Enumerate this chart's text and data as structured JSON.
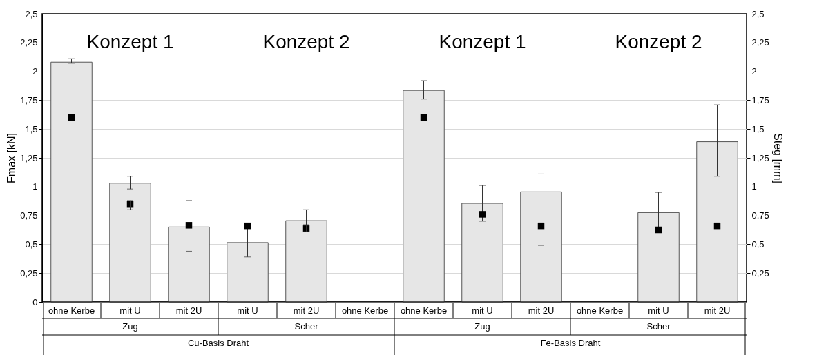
{
  "chart_data": {
    "type": "bar",
    "ylabel": "Fmax [kN]",
    "y2label": "Steg [mm]",
    "categories": [
      "ohne Kerbe",
      "mit U",
      "mit 2U",
      "mit U",
      "mit 2U",
      "ohne Kerbe",
      "ohne Kerbe",
      "mit U",
      "mit 2U",
      "ohne Kerbe",
      "mit U",
      "mit 2U"
    ],
    "series": [
      {
        "color": "#e6e6e6",
        "values": [
          2.08,
          1.03,
          0.65,
          0.515,
          0.705,
          null,
          1.835,
          0.855,
          0.955,
          null,
          0.775,
          1.39
        ],
        "errors": [
          [
            2.07,
            2.11
          ],
          [
            0.98,
            1.09
          ],
          [
            0.44,
            0.88
          ],
          [
            0.39,
            0.64
          ],
          [
            0.62,
            0.8
          ],
          null,
          [
            1.76,
            1.92
          ],
          [
            0.7,
            1.01
          ],
          [
            0.49,
            1.11
          ],
          null,
          [
            0.61,
            0.95
          ],
          [
            1.09,
            1.71
          ]
        ]
      },
      {
        "type": "scatter",
        "axis": "y2",
        "color": "#000000",
        "values": [
          1.6,
          0.845,
          0.665,
          0.66,
          0.635,
          null,
          1.6,
          0.76,
          0.66,
          null,
          0.625,
          0.66
        ],
        "errors": [
          null,
          [
            0.8,
            0.88
          ],
          null,
          null,
          [
            0.61,
            0.67
          ],
          null,
          null,
          null,
          null,
          null,
          null,
          null
        ]
      }
    ],
    "ylim": [
      0,
      2.5
    ],
    "yticks": [
      0,
      {
        "value": 0.25,
        "label": "0,25"
      },
      {
        "value": 0.5,
        "label": "0,5"
      },
      {
        "value": 0.75,
        "label": "0,75"
      },
      1,
      {
        "value": 1.25,
        "label": "1,25"
      },
      {
        "value": 1.5,
        "label": "1,5"
      },
      {
        "value": 1.75,
        "label": "1,75"
      },
      2,
      {
        "value": 2.25,
        "label": "2,25"
      },
      {
        "value": 2.5,
        "label": "2,5"
      }
    ],
    "y2lim": [
      0,
      2.5
    ],
    "y2ticks": [
      {
        "value": 0.25,
        "label": "0,25"
      },
      {
        "value": 0.5,
        "label": "0,5"
      },
      {
        "value": 0.75,
        "label": "0,75"
      },
      1,
      {
        "value": 1.25,
        "label": "1,25"
      },
      {
        "value": 1.5,
        "label": "1,5"
      },
      {
        "value": 1.75,
        "label": "1,75"
      },
      2,
      {
        "value": 2.25,
        "label": "2,25"
      },
      {
        "value": 2.5,
        "label": "2,5"
      }
    ],
    "grid": "y",
    "marker": "square",
    "annotations": [
      "Konzept 1",
      "Konzept 2",
      "Konzept 1",
      "Konzept 2",
      "Zug",
      "Scher",
      "Zug",
      "Scher",
      "Cu-Basis Draht",
      "Fe-Basis Draht"
    ]
  }
}
